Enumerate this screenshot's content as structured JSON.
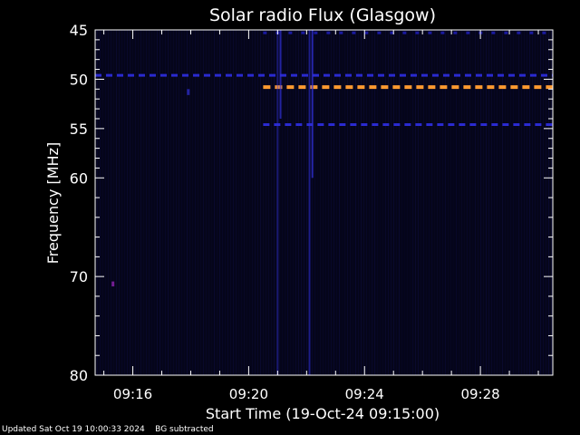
{
  "chart_data": {
    "type": "heatmap",
    "title": "Solar radio Flux (Glasgow)",
    "xlabel": "Start Time (19-Oct-24 09:15:00)",
    "ylabel": "Frequency [MHz]",
    "x_unit": "minutes after 09:15:00",
    "xlim": [
      -0.3,
      15.5
    ],
    "ylim": [
      45,
      80
    ],
    "y_scale": "inverted",
    "x_ticks": [
      {
        "value": 1,
        "label": "09:16"
      },
      {
        "value": 5,
        "label": "09:20"
      },
      {
        "value": 9,
        "label": "09:24"
      },
      {
        "value": 13,
        "label": "09:28"
      }
    ],
    "y_ticks": [
      {
        "value": 45,
        "label": "45"
      },
      {
        "value": 50,
        "label": "50"
      },
      {
        "value": 55,
        "label": "55"
      },
      {
        "value": 60,
        "label": "60"
      },
      {
        "value": 70,
        "label": "70"
      },
      {
        "value": 80,
        "label": "80"
      }
    ],
    "background_color": "#05051a",
    "bands": [
      {
        "freq": 49.6,
        "t_start": -0.3,
        "t_end": 15.5,
        "color": "#2a2ad0",
        "style": "dashed"
      },
      {
        "freq": 50.8,
        "t_start": 5.5,
        "t_end": 15.5,
        "color": "#ff9a30",
        "style": "dashed"
      },
      {
        "freq": 54.6,
        "t_start": 5.5,
        "t_end": 15.5,
        "color": "#2a2ad0",
        "style": "dashed"
      },
      {
        "freq": 45.3,
        "t_start": 5.5,
        "t_end": 15.5,
        "color": "#1a1aa0",
        "style": "dashed"
      }
    ],
    "bursts": [
      {
        "time": 6.0,
        "f_start": 45,
        "f_end": 80,
        "intensity": 0.45
      },
      {
        "time": 6.1,
        "f_start": 45,
        "f_end": 54,
        "intensity": 0.7
      },
      {
        "time": 7.1,
        "f_start": 45,
        "f_end": 80,
        "intensity": 0.55
      },
      {
        "time": 7.2,
        "f_start": 45,
        "f_end": 60,
        "intensity": 0.75
      },
      {
        "time": 0.3,
        "f_start": 70.5,
        "f_end": 71.0,
        "intensity": 0.9
      },
      {
        "time": 2.9,
        "f_start": 51.0,
        "f_end": 51.6,
        "intensity": 0.7
      }
    ]
  },
  "footer": {
    "updated": "Updated Sat Oct 19 10:00:33 2024",
    "note": "BG subtracted"
  }
}
